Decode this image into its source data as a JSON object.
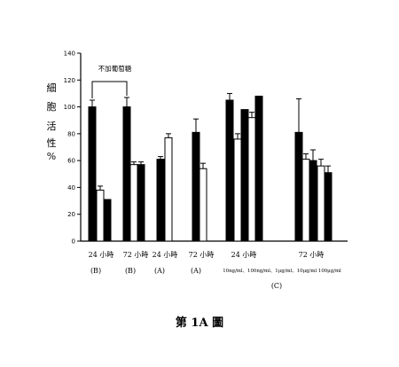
{
  "caption": "第 1A 圖",
  "chart_data": {
    "type": "bar",
    "ylabel_chars": [
      "細",
      "胞",
      "活",
      "性",
      "%"
    ],
    "ylim": [
      0,
      140
    ],
    "yticks": [
      0,
      20,
      40,
      60,
      80,
      100,
      120,
      140
    ],
    "grid": false,
    "annotation": "不加葡萄糖",
    "groups": [
      {
        "label": "24 小時",
        "sub": "(B)",
        "bars": [
          {
            "value": 100,
            "err": 5,
            "fill": "black"
          },
          {
            "value": 38,
            "err": 3,
            "fill": "white"
          },
          {
            "value": 31,
            "err": 0,
            "fill": "black"
          }
        ]
      },
      {
        "label": "72 小時",
        "sub": "(B)",
        "bars": [
          {
            "value": 100,
            "err": 7,
            "fill": "black"
          },
          {
            "value": 57,
            "err": 2,
            "fill": "white"
          },
          {
            "value": 57,
            "err": 2,
            "fill": "black"
          }
        ]
      },
      {
        "label": "24 小時",
        "sub": "(A)",
        "bars": [
          {
            "value": 61,
            "err": 2,
            "fill": "black"
          },
          {
            "value": 77,
            "err": 3,
            "fill": "white"
          }
        ]
      },
      {
        "label": "72 小時",
        "sub": "(A)",
        "bars": [
          {
            "value": 81,
            "err": 10,
            "fill": "black"
          },
          {
            "value": 54,
            "err": 4,
            "fill": "white"
          }
        ]
      },
      {
        "label": "24 小時",
        "sub": "",
        "bars": [
          {
            "value": 105,
            "err": 5,
            "fill": "black"
          },
          {
            "value": 76,
            "err": 4,
            "fill": "white"
          },
          {
            "value": 98,
            "err": 0,
            "fill": "black"
          },
          {
            "value": 92,
            "err": 4,
            "fill": "white"
          },
          {
            "value": 108,
            "err": 0,
            "fill": "black"
          }
        ]
      },
      {
        "label": "72 小時",
        "sub": "",
        "bars": [
          {
            "value": 81,
            "err": 25,
            "fill": "black"
          },
          {
            "value": 61,
            "err": 4,
            "fill": "white"
          },
          {
            "value": 60,
            "err": 8,
            "fill": "black"
          },
          {
            "value": 56,
            "err": 5,
            "fill": "white"
          },
          {
            "value": 51,
            "err": 5,
            "fill": "black"
          }
        ]
      }
    ],
    "concentrations": "10ng/ml、100ng/ml、1μg/ml、10μg/ml 100μg/ml",
    "c_label": "(C)"
  }
}
